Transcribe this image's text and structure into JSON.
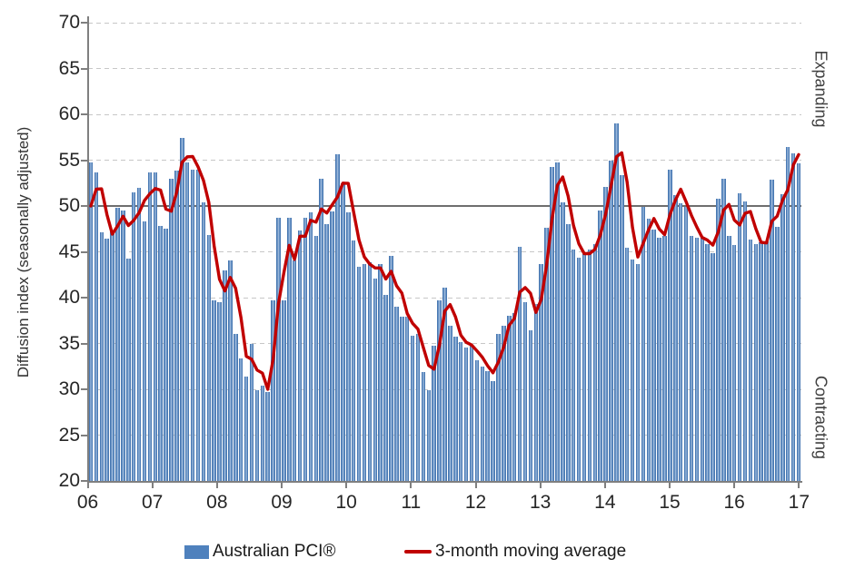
{
  "chart": {
    "y_axis": {
      "title": "Diffusion index (seasonally adjusted)",
      "min": 20,
      "max": 70,
      "step": 5,
      "tick_labels": [
        "20",
        "25",
        "30",
        "35",
        "40",
        "45",
        "50",
        "55",
        "60",
        "65",
        "70"
      ]
    },
    "x_axis": {
      "labels": [
        "06",
        "07",
        "08",
        "09",
        "10",
        "11",
        "12",
        "13",
        "14",
        "15",
        "16",
        "17"
      ]
    },
    "right_labels": {
      "top": "Expanding",
      "bottom": "Contracting"
    },
    "legend": {
      "bars_label": "Australian PCI®",
      "line_label": "3-month moving average"
    },
    "colors": {
      "bar": "#4f81bd",
      "bar_highlight": "#a6c0e0",
      "line": "#c00000",
      "grid": "#c7c7c7",
      "axis": "#7f7f7f",
      "reference": "#6e6e6e",
      "text": "#262626"
    }
  },
  "chart_data": {
    "type": "bar",
    "ylabel": "Diffusion index (seasonally adjusted)",
    "ylim": [
      20,
      70
    ],
    "reference_line": 50,
    "grid": "dashed-horizontal",
    "legend_position": "bottom",
    "start_month": "2006-01",
    "categories_years": [
      "06",
      "07",
      "08",
      "09",
      "10",
      "11",
      "12",
      "13",
      "14",
      "15",
      "16",
      "17"
    ],
    "series": [
      {
        "name": "Australian PCI®",
        "type": "bar"
      },
      {
        "name": "3-month moving average",
        "type": "line",
        "window": 3,
        "lead_in": [
          48.2,
          47.0
        ]
      }
    ],
    "values": [
      54.8,
      53.7,
      47.1,
      46.4,
      47.3,
      49.8,
      49.5,
      44.3,
      51.5,
      52.0,
      48.3,
      53.7,
      53.7,
      47.8,
      47.5,
      53.0,
      53.9,
      57.4,
      54.8,
      54.0,
      54.0,
      50.4,
      46.8,
      39.7,
      39.5,
      43.0,
      44.1,
      36.0,
      33.4,
      31.4,
      35.0,
      29.9,
      30.4,
      29.7,
      39.7,
      48.7,
      39.7,
      48.7,
      44.1,
      47.3,
      48.7,
      49.3,
      46.7,
      53.0,
      48.0,
      49.4,
      55.6,
      52.5,
      49.3,
      46.2,
      43.4,
      43.7,
      43.9,
      42.1,
      43.7,
      40.3,
      44.6,
      39.0,
      37.9,
      37.9,
      35.8,
      36.0,
      31.9,
      29.9,
      34.8,
      39.7,
      41.1,
      36.9,
      35.7,
      35.1,
      34.6,
      34.8,
      33.2,
      32.5,
      32.0,
      30.9,
      36.0,
      36.9,
      38.0,
      38.3,
      45.5,
      39.5,
      36.4,
      39.3,
      43.7,
      47.6,
      54.3,
      54.8,
      50.4,
      48.0,
      45.2,
      44.4,
      44.8,
      45.2,
      45.8,
      49.5,
      52.1,
      55.0,
      59.0,
      53.4,
      45.4,
      44.2,
      43.7,
      49.9,
      48.6,
      47.4,
      46.5,
      46.7,
      54.0,
      51.2,
      50.3,
      49.9,
      46.7,
      46.5,
      46.5,
      45.8,
      44.9,
      50.8,
      53.0,
      46.7,
      45.7,
      51.4,
      50.5,
      46.3,
      45.8,
      46.0,
      46.1,
      52.9,
      47.7,
      51.3,
      56.4,
      55.7,
      54.7
    ]
  }
}
